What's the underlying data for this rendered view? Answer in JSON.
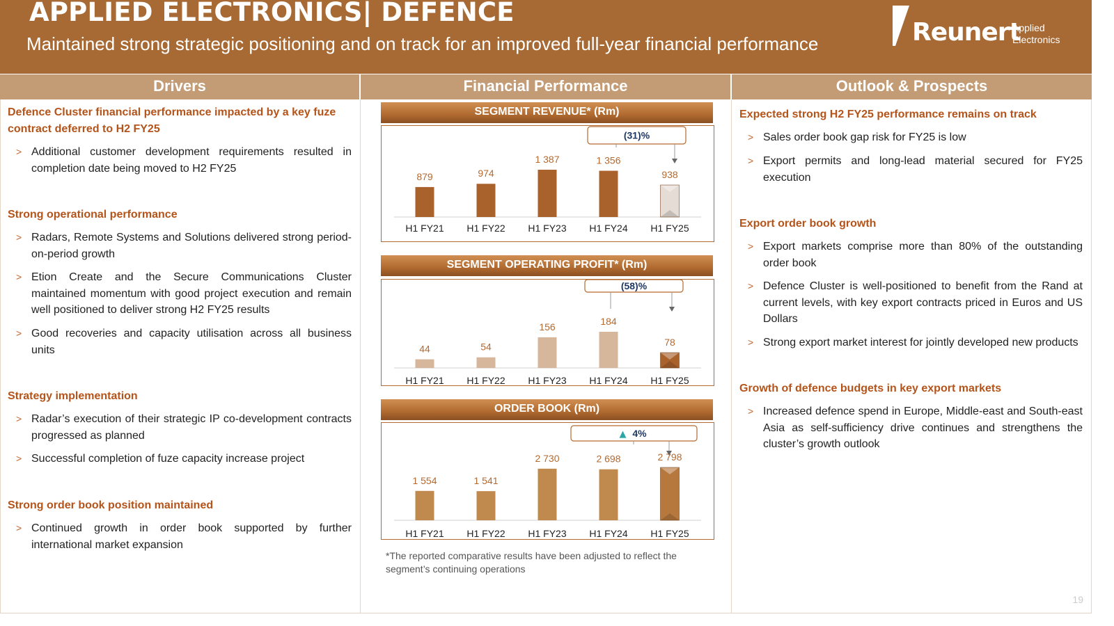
{
  "header": {
    "title": "APPLIED ELECTRONICS| DEFENCE",
    "subtitle": "Maintained strong strategic positioning and on track for an improved full-year financial performance",
    "logo_name": "Reunert",
    "logo_sub1": "Applied",
    "logo_sub2": "Electronics"
  },
  "columns": {
    "drivers": "Drivers",
    "financial": "Financial Performance",
    "outlook": "Outlook & Prospects"
  },
  "drivers": [
    {
      "title": "Defence Cluster financial performance impacted by a key fuze contract deferred to H2 FY25",
      "bullets": [
        "Additional customer development requirements resulted in completion date being moved to H2 FY25"
      ]
    },
    {
      "title": "Strong operational performance",
      "bullets": [
        "Radars, Remote Systems and Solutions delivered strong period-on-period growth",
        "Etion Create and the Secure Communications Cluster maintained momentum with good project execution and remain well positioned to deliver strong H2 FY25 results",
        "Good recoveries and capacity utilisation across all business units"
      ]
    },
    {
      "title": "Strategy implementation",
      "bullets": [
        "Radar’s execution of their strategic IP co-development contracts progressed as planned",
        "Successful completion of fuze capacity increase project"
      ]
    },
    {
      "title": "Strong order book position maintained",
      "bullets": [
        "Continued growth in order book supported by further international market expansion"
      ]
    }
  ],
  "outlook": [
    {
      "title": "Expected strong H2 FY25 performance remains on track",
      "bullets": [
        "Sales order book gap risk for FY25 is low",
        "Export permits and long-lead material secured for FY25 execution"
      ]
    },
    {
      "title": "Export order book growth",
      "bullets": [
        "Export markets comprise more than 80% of the outstanding order book",
        "Defence Cluster is well-positioned to benefit from the Rand at current levels, with key export contracts priced in Euros and US Dollars",
        "Strong export market interest for jointly developed new products"
      ]
    },
    {
      "title": "Growth of defence budgets in key export markets",
      "bullets": [
        "Increased defence spend in Europe, Middle-east and South-east Asia as self-sufficiency drive continues and strengthens the cluster’s growth outlook"
      ]
    }
  ],
  "bullet_mark": ">",
  "chart_data": [
    {
      "type": "bar",
      "title": "SEGMENT REVENUE* (Rm)",
      "categories": [
        "H1 FY21",
        "H1 FY22",
        "H1 FY23",
        "H1 FY24",
        "H1 FY25"
      ],
      "values": [
        879,
        974,
        1387,
        1356,
        938
      ],
      "value_labels": [
        "879",
        "974",
        "1 387",
        "1 356",
        "938"
      ],
      "annotation": "(31)%",
      "bar_color": "#a9622c",
      "highlight_color": "#e6dcd6"
    },
    {
      "type": "bar",
      "title": "SEGMENT OPERATING PROFIT* (Rm)",
      "categories": [
        "H1 FY21",
        "H1 FY22",
        "H1 FY23",
        "H1 FY24",
        "H1 FY25"
      ],
      "values": [
        44,
        54,
        156,
        184,
        78
      ],
      "value_labels": [
        "44",
        "54",
        "156",
        "184",
        "78"
      ],
      "annotation": "(58)%",
      "bar_color": "#d7b79c",
      "highlight_color": "#a9622c"
    },
    {
      "type": "bar",
      "title": "ORDER BOOK (Rm)",
      "categories": [
        "H1 FY21",
        "H1 FY22",
        "H1 FY23",
        "H1 FY24",
        "H1 FY25"
      ],
      "values": [
        1554,
        1541,
        2730,
        2698,
        2798
      ],
      "value_labels": [
        "1 554",
        "1 541",
        "2 730",
        "2 698",
        "2 798"
      ],
      "annotation": "4%",
      "annotation_arrow": "▲",
      "bar_color": "#c08a4e",
      "highlight_color": "#b7783d"
    }
  ],
  "footnote": "*The reported comparative results have been adjusted to reflect the segment’s continuing operations",
  "page_number": "19"
}
